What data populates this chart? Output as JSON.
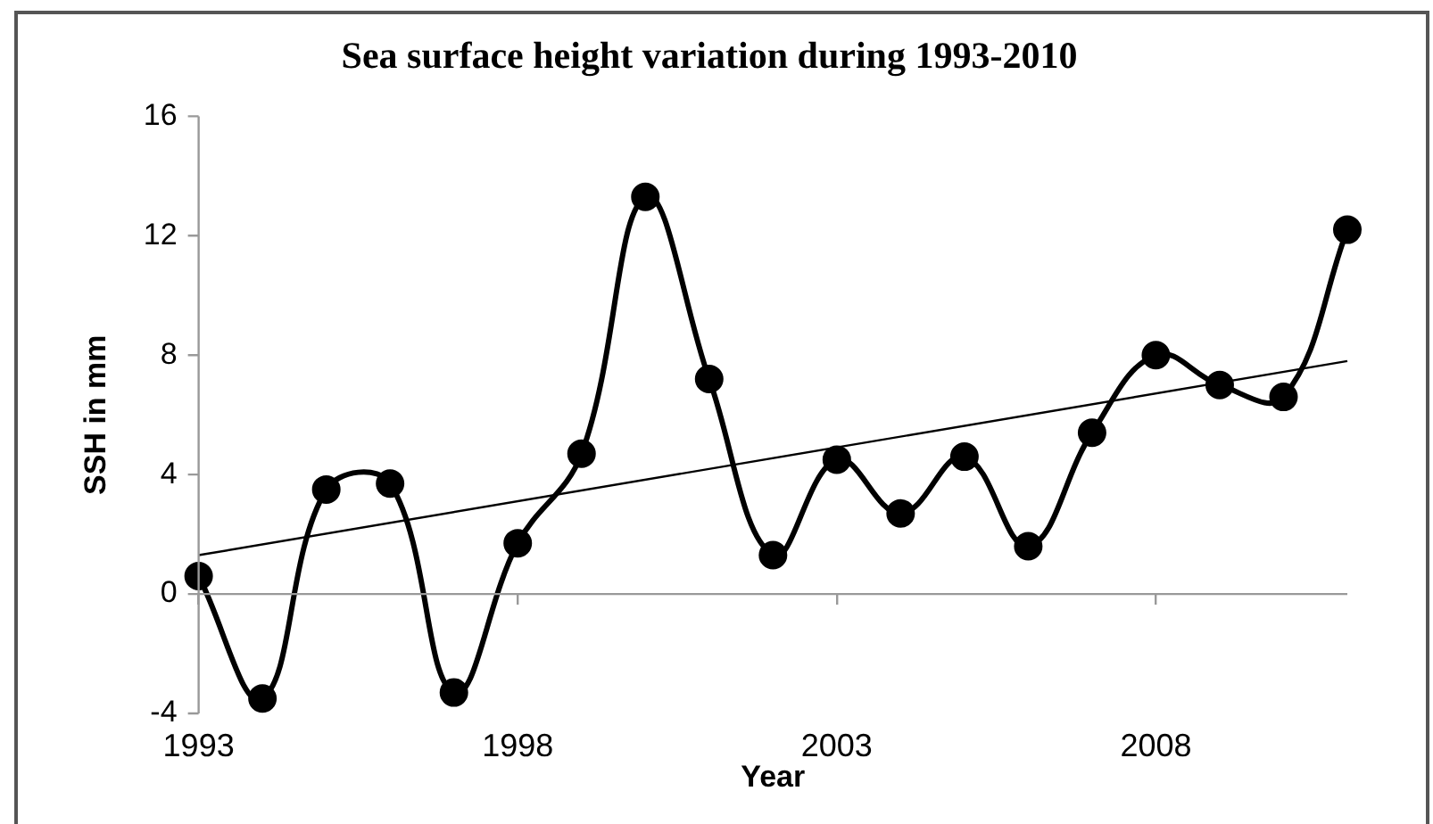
{
  "chart_data": {
    "type": "line",
    "title": "Sea surface height variation during 1993-2010",
    "xlabel": "Year",
    "ylabel": "SSH in mm",
    "x": [
      1993,
      1994,
      1995,
      1996,
      1997,
      1998,
      1999,
      2000,
      2001,
      2002,
      2003,
      2004,
      2005,
      2006,
      2007,
      2008,
      2009,
      2010,
      2011
    ],
    "series": [
      {
        "color": "#000000",
        "marker": "circle",
        "values": [
          0.6,
          -3.5,
          3.5,
          3.7,
          -3.3,
          1.7,
          4.7,
          13.3,
          7.2,
          1.3,
          4.5,
          2.7,
          4.6,
          1.6,
          5.4,
          8.0,
          7.0,
          6.6,
          12.2
        ]
      },
      {
        "type": "line",
        "color": "#000000",
        "marker": "none",
        "x": [
          1993,
          2011
        ],
        "values": [
          1.3,
          7.8
        ]
      }
    ],
    "xlim": [
      1993,
      2011
    ],
    "xticks": [
      1993,
      1998,
      2003,
      2008
    ],
    "ylim": [
      -4,
      16
    ],
    "yticks": [
      -4,
      0,
      4,
      8,
      12,
      16
    ],
    "ref_lines": [
      {
        "axis": "y",
        "value": 0,
        "color": "#999999"
      }
    ],
    "grid": false,
    "legend": false,
    "line_style": "solid"
  }
}
